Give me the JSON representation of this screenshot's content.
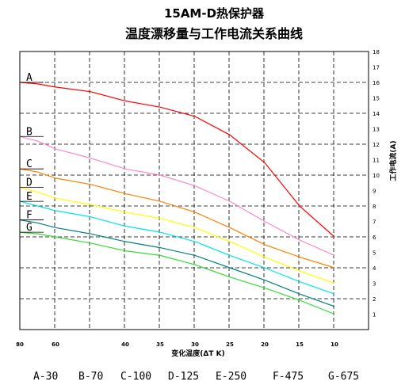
{
  "title_line1": "15AM-D热保护器",
  "title_line2": "温度漂移量与工作电流关系曲线",
  "chart_data": {
    "type": "line",
    "xlabel": "变化温度(ΔT K)",
    "ylabel": "工作电流(A)",
    "x_tick_labels": [
      "80",
      "60",
      "40",
      "35",
      "30",
      "25",
      "20",
      "15",
      "10"
    ],
    "x_ticks": [
      80,
      60,
      40,
      35,
      30,
      25,
      20,
      15,
      10
    ],
    "ylim": [
      0,
      18
    ],
    "y_tick_labels": [
      "1",
      "2",
      "3",
      "4",
      "5",
      "6",
      "7",
      "8",
      "9",
      "10",
      "11",
      "12",
      "13",
      "14",
      "15",
      "16",
      "17",
      "18"
    ],
    "grid": true,
    "series": [
      {
        "name": "A",
        "color": "#ff0000",
        "x": [
          80,
          70,
          60,
          50,
          40,
          35,
          30,
          25,
          20,
          15,
          10
        ],
        "y": [
          16.0,
          15.9,
          15.7,
          15.4,
          14.8,
          14.4,
          13.8,
          12.6,
          10.8,
          8.0,
          6.0
        ]
      },
      {
        "name": "B",
        "color": "#ff88c8",
        "x": [
          80,
          70,
          60,
          50,
          40,
          35,
          30,
          25,
          20,
          15,
          10
        ],
        "y": [
          12.5,
          12.2,
          11.7,
          11.1,
          10.4,
          10.0,
          9.3,
          8.3,
          7.0,
          5.8,
          4.8
        ]
      },
      {
        "name": "C",
        "color": "#ff8000",
        "x": [
          80,
          70,
          60,
          50,
          40,
          35,
          30,
          25,
          20,
          15,
          10
        ],
        "y": [
          10.4,
          10.2,
          9.8,
          9.4,
          8.8,
          8.3,
          7.6,
          6.6,
          5.5,
          4.7,
          4.0
        ]
      },
      {
        "name": "D",
        "color": "#ffff00",
        "x": [
          80,
          70,
          60,
          50,
          40,
          35,
          30,
          25,
          20,
          15,
          10
        ],
        "y": [
          9.2,
          8.9,
          8.5,
          8.1,
          7.6,
          7.2,
          6.6,
          5.7,
          4.7,
          3.8,
          3.0
        ]
      },
      {
        "name": "E",
        "color": "#00e5e5",
        "x": [
          80,
          70,
          60,
          50,
          40,
          35,
          30,
          25,
          20,
          15,
          10
        ],
        "y": [
          8.3,
          8.0,
          7.7,
          7.3,
          6.7,
          6.3,
          5.7,
          4.8,
          4.0,
          3.1,
          2.3
        ]
      },
      {
        "name": "F",
        "color": "#008080",
        "x": [
          80,
          70,
          60,
          50,
          40,
          35,
          30,
          25,
          20,
          15,
          10
        ],
        "y": [
          7.1,
          6.9,
          6.6,
          6.2,
          5.7,
          5.3,
          4.8,
          4.0,
          3.2,
          2.3,
          1.5
        ]
      },
      {
        "name": "G",
        "color": "#33dd33",
        "x": [
          80,
          70,
          60,
          50,
          40,
          35,
          30,
          25,
          20,
          15,
          10
        ],
        "y": [
          6.3,
          6.2,
          6.0,
          5.6,
          5.1,
          4.8,
          4.2,
          3.4,
          2.7,
          1.9,
          1.0
        ]
      }
    ],
    "legend": [
      "A-30",
      "B-70",
      "C-100",
      "D-125",
      "E-250",
      "F-475",
      "G-675"
    ]
  }
}
